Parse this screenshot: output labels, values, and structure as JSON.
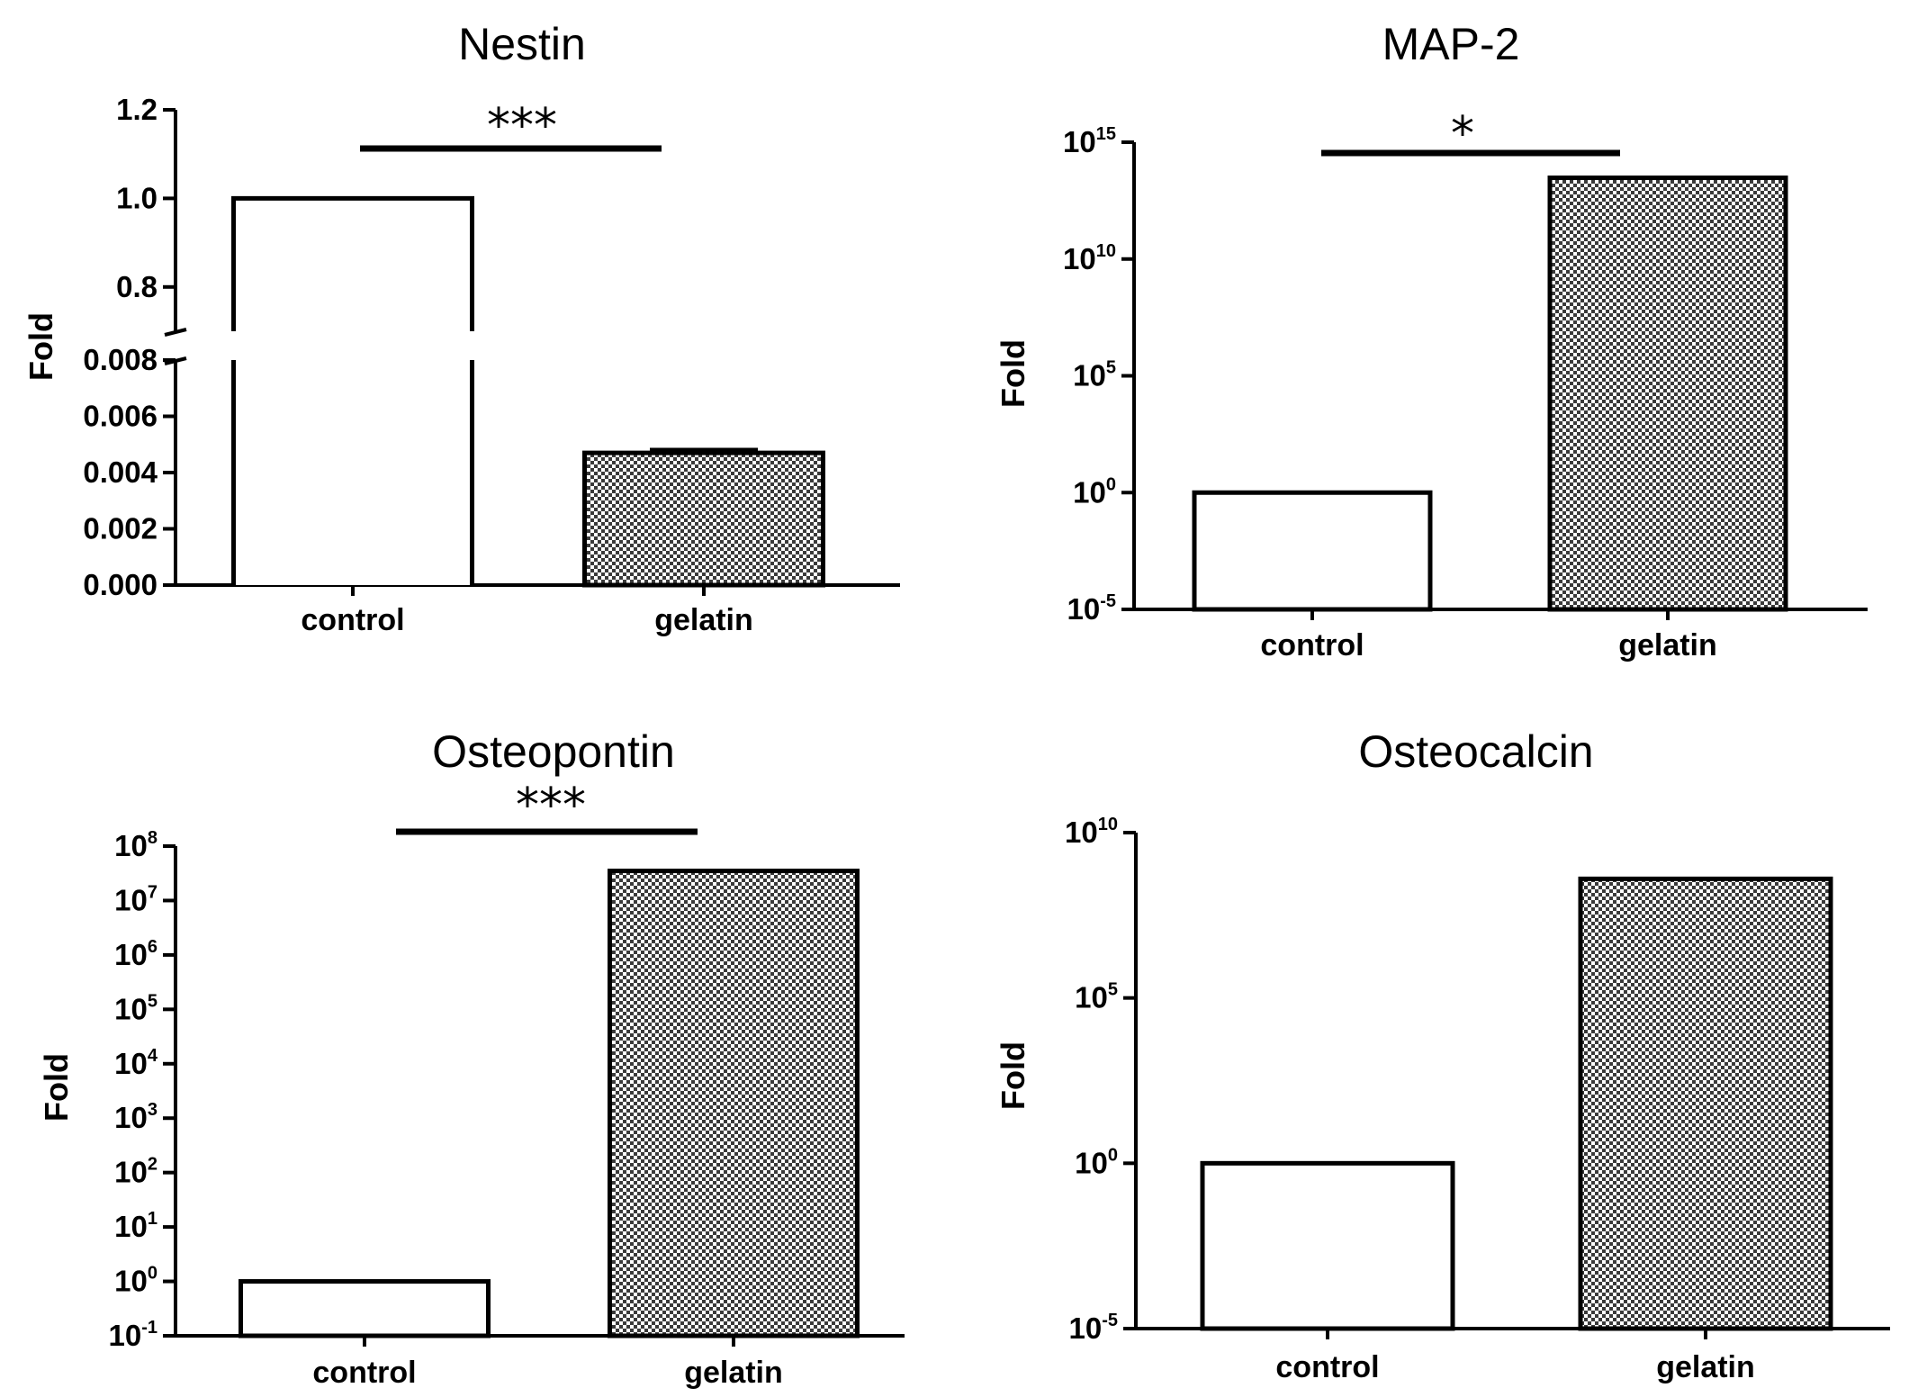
{
  "chart_data": [
    {
      "type": "bar",
      "title": "Nestin",
      "ylabel": "Fold",
      "xlabel": "",
      "scale": "broken-linear",
      "categories": [
        "control",
        "gelatin"
      ],
      "values": [
        1.0,
        0.0047
      ],
      "error": [
        0,
        0.0001
      ],
      "ylim_lower": [
        0,
        0.008
      ],
      "ylim_upper": [
        0.7,
        1.2
      ],
      "yticks_lower": [
        "0.000",
        "0.002",
        "0.004",
        "0.006",
        "0.008"
      ],
      "yticks_upper": [
        "0.8",
        "1.0",
        "1.2"
      ],
      "significance": "***",
      "fills": [
        "#ffffff",
        "checker"
      ]
    },
    {
      "type": "bar",
      "title": "MAP-2",
      "ylabel": "Fold",
      "xlabel": "",
      "scale": "log",
      "categories": [
        "control",
        "gelatin"
      ],
      "values": [
        1,
        30000000000000.0
      ],
      "ylim_exp": [
        -5,
        15
      ],
      "ytick_exps": [
        -5,
        0,
        5,
        10,
        15
      ],
      "significance": "*",
      "fills": [
        "#ffffff",
        "checker"
      ]
    },
    {
      "type": "bar",
      "title": "Osteopontin",
      "ylabel": "Fold",
      "xlabel": "",
      "scale": "log",
      "categories": [
        "control",
        "gelatin"
      ],
      "values": [
        1,
        35000000.0
      ],
      "ylim_exp": [
        -1,
        8
      ],
      "ytick_exps": [
        -1,
        0,
        1,
        2,
        3,
        4,
        5,
        6,
        7,
        8
      ],
      "significance": "***",
      "fills": [
        "#ffffff",
        "checker"
      ]
    },
    {
      "type": "bar",
      "title": "Osteocalcin",
      "ylabel": "Fold",
      "xlabel": "",
      "scale": "log",
      "categories": [
        "control",
        "gelatin"
      ],
      "values": [
        1,
        400000000.0
      ],
      "ylim_exp": [
        -5,
        10
      ],
      "ytick_exps": [
        -5,
        0,
        5,
        10
      ],
      "significance": "",
      "fills": [
        "#ffffff",
        "checker"
      ]
    }
  ]
}
